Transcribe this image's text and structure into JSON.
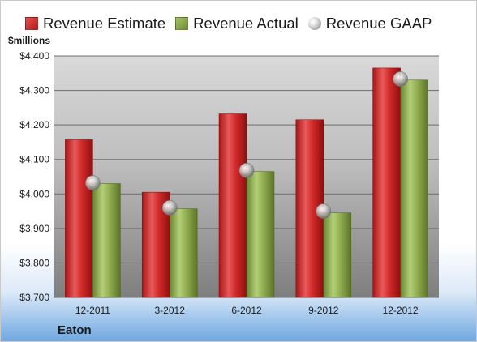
{
  "legend": {
    "estimate": "Revenue Estimate",
    "actual": "Revenue Actual",
    "gaap": "Revenue GAAP"
  },
  "unit_label": "$millions",
  "company": "Eaton",
  "colors": {
    "estimate": "#c82424",
    "actual": "#8aa64a",
    "gaap": "#b8b8b8"
  },
  "chart_data": {
    "type": "bar",
    "categories": [
      "12-2011",
      "3-2012",
      "6-2012",
      "9-2012",
      "12-2012"
    ],
    "series": [
      {
        "name": "Revenue Estimate",
        "values": [
          4157,
          4005,
          4232,
          4215,
          4365
        ]
      },
      {
        "name": "Revenue Actual",
        "values": [
          4030,
          3957,
          4065,
          3945,
          4330
        ]
      },
      {
        "name": "Revenue GAAP",
        "values": [
          4032,
          3960,
          4068,
          3950,
          4333
        ]
      }
    ],
    "ylim": [
      3700,
      4400
    ],
    "yticks": [
      3700,
      3800,
      3900,
      4000,
      4100,
      4200,
      4300,
      4400
    ],
    "ytick_labels": [
      "$3,700",
      "$3,800",
      "$3,900",
      "$4,000",
      "$4,100",
      "$4,200",
      "$4,300",
      "$4,400"
    ],
    "grid": true,
    "legend_position": "top"
  }
}
